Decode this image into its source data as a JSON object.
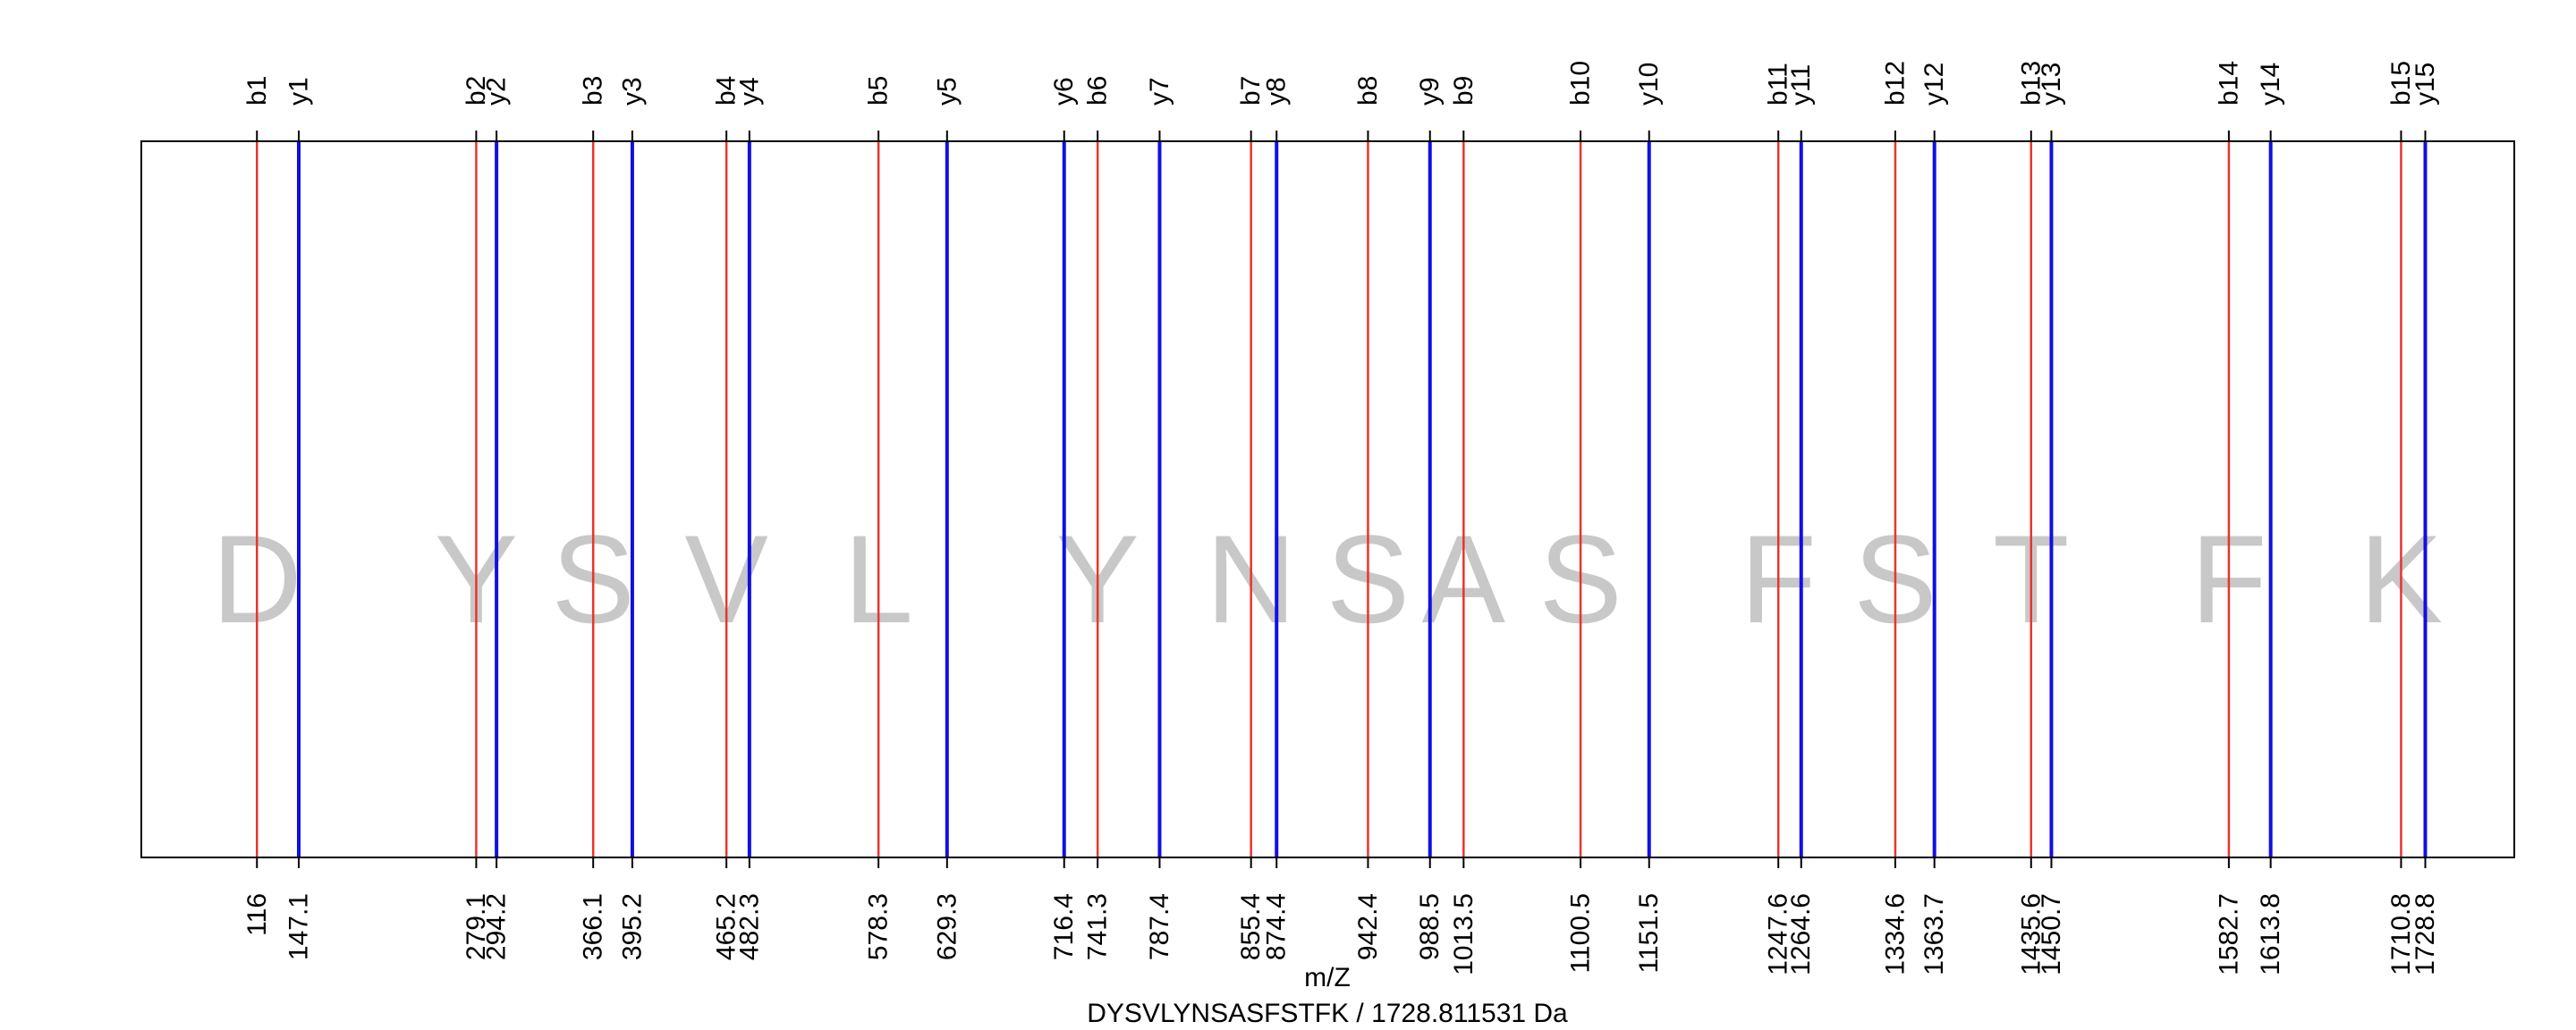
{
  "chart_data": {
    "type": "fragment-ion-map",
    "xlabel": "m/Z",
    "caption": "DYSVLYNSASFSTFK / 1728.811531 Da",
    "peptide": "DYSVLYNSASFSTFK",
    "mass": "1728.811531 Da",
    "xlim": [
      30,
      1795
    ],
    "colors": {
      "b": "#e8352c",
      "y": "#1010e0",
      "residue": "#c8c8c8",
      "frame": "#000000"
    },
    "b_ions": [
      {
        "label": "b1",
        "mz": 116,
        "mz_label": "116"
      },
      {
        "label": "b2",
        "mz": 279.1,
        "mz_label": "279.1"
      },
      {
        "label": "b3",
        "mz": 366.1,
        "mz_label": "366.1"
      },
      {
        "label": "b4",
        "mz": 465.2,
        "mz_label": "465.2"
      },
      {
        "label": "b5",
        "mz": 578.3,
        "mz_label": "578.3"
      },
      {
        "label": "b6",
        "mz": 741.3,
        "mz_label": "741.3"
      },
      {
        "label": "b7",
        "mz": 855.4,
        "mz_label": "855.4"
      },
      {
        "label": "b8",
        "mz": 942.4,
        "mz_label": "942.4"
      },
      {
        "label": "b9",
        "mz": 1013.5,
        "mz_label": "1013.5"
      },
      {
        "label": "b10",
        "mz": 1100.5,
        "mz_label": "1100.5"
      },
      {
        "label": "b11",
        "mz": 1247.6,
        "mz_label": "1247.6"
      },
      {
        "label": "b12",
        "mz": 1334.6,
        "mz_label": "1334.6"
      },
      {
        "label": "b13",
        "mz": 1435.6,
        "mz_label": "1435.6"
      },
      {
        "label": "b14",
        "mz": 1582.7,
        "mz_label": "1582.7"
      },
      {
        "label": "b15",
        "mz": 1710.8,
        "mz_label": "1710.8"
      }
    ],
    "y_ions": [
      {
        "label": "y1",
        "mz": 147.1,
        "mz_label": "147.1"
      },
      {
        "label": "y2",
        "mz": 294.2,
        "mz_label": "294.2"
      },
      {
        "label": "y3",
        "mz": 395.2,
        "mz_label": "395.2"
      },
      {
        "label": "y4",
        "mz": 482.3,
        "mz_label": "482.3"
      },
      {
        "label": "y5",
        "mz": 629.3,
        "mz_label": "629.3"
      },
      {
        "label": "y6",
        "mz": 716.4,
        "mz_label": "716.4"
      },
      {
        "label": "y7",
        "mz": 787.4,
        "mz_label": "787.4"
      },
      {
        "label": "y8",
        "mz": 874.4,
        "mz_label": "874.4"
      },
      {
        "label": "y9",
        "mz": 988.5,
        "mz_label": "988.5"
      },
      {
        "label": "y10",
        "mz": 1151.5,
        "mz_label": "1151.5"
      },
      {
        "label": "y11",
        "mz": 1264.6,
        "mz_label": "1264.6"
      },
      {
        "label": "y12",
        "mz": 1363.7,
        "mz_label": "1363.7"
      },
      {
        "label": "y13",
        "mz": 1450.7,
        "mz_label": "1450.7"
      },
      {
        "label": "y14",
        "mz": 1613.8,
        "mz_label": "1613.8"
      },
      {
        "label": "y15",
        "mz": 1728.8,
        "mz_label": "1728.8"
      }
    ],
    "residues": [
      {
        "letter": "D",
        "mz": 116
      },
      {
        "letter": "Y",
        "mz": 279.1
      },
      {
        "letter": "S",
        "mz": 366.1
      },
      {
        "letter": "V",
        "mz": 465.2
      },
      {
        "letter": "L",
        "mz": 578.3
      },
      {
        "letter": "Y",
        "mz": 741.3
      },
      {
        "letter": "N",
        "mz": 855.4
      },
      {
        "letter": "S",
        "mz": 942.4
      },
      {
        "letter": "A",
        "mz": 1013.5
      },
      {
        "letter": "S",
        "mz": 1100.5
      },
      {
        "letter": "F",
        "mz": 1247.6
      },
      {
        "letter": "S",
        "mz": 1334.6
      },
      {
        "letter": "T",
        "mz": 1435.6
      },
      {
        "letter": "F",
        "mz": 1582.7
      },
      {
        "letter": "K",
        "mz": 1710.8
      }
    ]
  }
}
